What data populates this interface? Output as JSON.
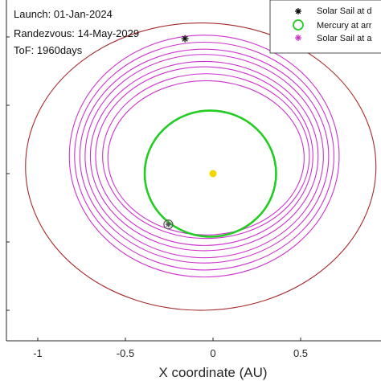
{
  "chart_data": {
    "type": "line",
    "title": "",
    "xlabel": "X coordinate (AU)",
    "ylabel": "",
    "xlim": [
      -1.18,
      0.95
    ],
    "ylim": [
      -0.95,
      0.98
    ],
    "x_ticks": [
      -1,
      -0.5,
      0,
      0.5
    ],
    "x_tick_labels": [
      "-1",
      "-0.5",
      "0",
      "0.5"
    ],
    "y_ticks": [
      0.78,
      0.39,
      0.0,
      -0.39,
      -0.78
    ],
    "grid": false,
    "annotations": [
      {
        "label": "launch",
        "text": "Launch: 01-Jan-2024"
      },
      {
        "label": "rendezvous",
        "text": "Randezvous: 14-May-2029"
      },
      {
        "label": "tof",
        "text": "ToF: 1960days"
      }
    ],
    "legend": {
      "placement": "top-right",
      "entries": [
        {
          "label": "Solar Sail at d",
          "marker": "asterisk",
          "color": "#000000"
        },
        {
          "label": "Mercury at arr",
          "marker": "circle",
          "color": "#22cc22"
        },
        {
          "label": "Solar Sail at a",
          "marker": "asterisk",
          "color": "#cc33cc"
        }
      ]
    },
    "series": [
      {
        "kind": "orbit",
        "color": "#a52a2a",
        "ellipse": {
          "cx": -0.07,
          "cy": 0.04,
          "rx": 1.0,
          "ry": 0.82
        }
      },
      {
        "kind": "spiral",
        "color": "#cc33cc",
        "loops": [
          {
            "cx": -0.05,
            "cy": 0.1,
            "rx": 0.77,
            "ry": 0.69
          },
          {
            "cx": -0.05,
            "cy": 0.1,
            "rx": 0.74,
            "ry": 0.65
          },
          {
            "cx": -0.05,
            "cy": 0.1,
            "rx": 0.71,
            "ry": 0.61
          },
          {
            "cx": -0.05,
            "cy": 0.1,
            "rx": 0.68,
            "ry": 0.58
          },
          {
            "cx": -0.05,
            "cy": 0.1,
            "rx": 0.65,
            "ry": 0.54
          },
          {
            "cx": -0.05,
            "cy": 0.1,
            "rx": 0.62,
            "ry": 0.51
          },
          {
            "cx": -0.04,
            "cy": 0.1,
            "rx": 0.59,
            "ry": 0.47
          },
          {
            "cx": -0.04,
            "cy": 0.09,
            "rx": 0.56,
            "ry": 0.44
          }
        ]
      },
      {
        "kind": "orbit",
        "color": "#22cc22",
        "ellipse": {
          "cx": -0.015,
          "cy": 0.0,
          "rx": 0.375,
          "ry": 0.36
        }
      }
    ],
    "points": [
      {
        "kind": "sun",
        "x": 0.0,
        "y": 0.0,
        "color": "#f2d600"
      },
      {
        "kind": "departure",
        "x": -0.16,
        "y": 0.77,
        "marker": "asterisk",
        "color": "#000000"
      },
      {
        "kind": "arrival-mercury",
        "x": -0.255,
        "y": -0.29,
        "marker": "circle",
        "color": "#22cc22"
      },
      {
        "kind": "arrival-sail",
        "x": -0.255,
        "y": -0.29,
        "marker": "asterisk",
        "color": "#cc33cc"
      }
    ]
  }
}
